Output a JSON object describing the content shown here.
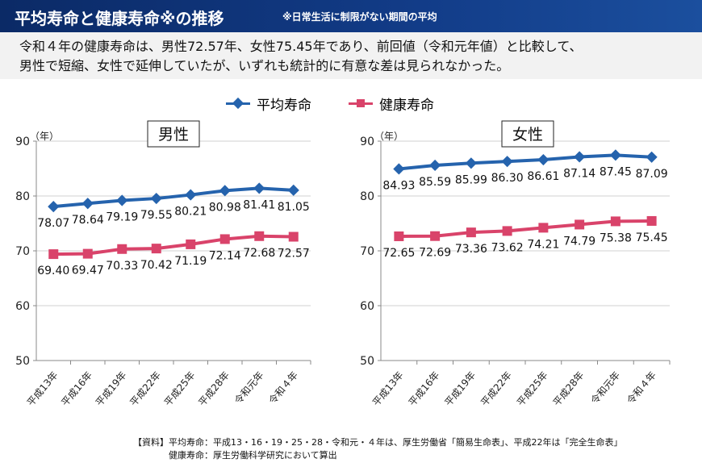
{
  "header": {
    "title": "平均寿命と健康寿命※の推移",
    "subtitle": "※日常生活に制限がない期間の平均"
  },
  "summary": [
    "令和４年の健康寿命は、男性72.57年、女性75.45年であり、前回値（令和元年値）と比較して、",
    "男性で短縮、女性で延伸していたが、いずれも統計的に有意な差は見られなかった。"
  ],
  "legend": [
    "平均寿命",
    "健康寿命"
  ],
  "colors": {
    "life": "#2563ad",
    "health": "#d9436a"
  },
  "source": [
    "【資料】平均寿命：平成13・16・19・25・28・令和元・４年は、厚生労働省「簡易生命表」、平成22年は「完全生命表」",
    "　　　　健康寿命：厚生労働科学研究において算出"
  ],
  "chart_data": [
    {
      "type": "line",
      "title": "男性",
      "ylabel": "（年）",
      "ylim": [
        50,
        90
      ],
      "yticks": [
        50,
        60,
        70,
        80,
        90
      ],
      "categories": [
        "平成13年",
        "平成16年",
        "平成19年",
        "平成22年",
        "平成25年",
        "平成28年",
        "令和元年",
        "令和４年"
      ],
      "series": [
        {
          "name": "平均寿命",
          "values": [
            78.07,
            78.64,
            79.19,
            79.55,
            80.21,
            80.98,
            81.41,
            81.05
          ]
        },
        {
          "name": "健康寿命",
          "values": [
            69.4,
            69.47,
            70.33,
            70.42,
            71.19,
            72.14,
            72.68,
            72.57
          ]
        }
      ]
    },
    {
      "type": "line",
      "title": "女性",
      "ylabel": "（年）",
      "ylim": [
        50,
        90
      ],
      "yticks": [
        50,
        60,
        70,
        80,
        90
      ],
      "categories": [
        "平成13年",
        "平成16年",
        "平成19年",
        "平成22年",
        "平成25年",
        "平成28年",
        "令和元年",
        "令和４年"
      ],
      "series": [
        {
          "name": "平均寿命",
          "values": [
            84.93,
            85.59,
            85.99,
            86.3,
            86.61,
            87.14,
            87.45,
            87.09
          ]
        },
        {
          "name": "健康寿命",
          "values": [
            72.65,
            72.69,
            73.36,
            73.62,
            74.21,
            74.79,
            75.38,
            75.45
          ]
        }
      ]
    }
  ]
}
